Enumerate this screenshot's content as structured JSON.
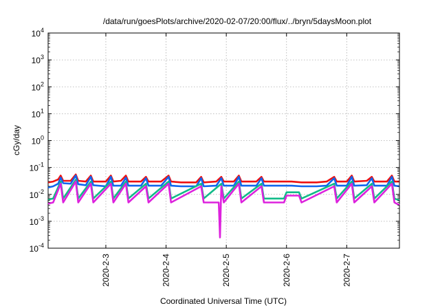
{
  "chart_data": {
    "type": "line",
    "title": "/data/run/goesPlots/archive/2020-02-07/20:00/flux/../bryn/5daysMoon.plot",
    "xlabel": "Coordinated Universal Time (UTC)",
    "ylabel": "cGy/day",
    "y_scale": "log",
    "ylim": [
      0.0001,
      10000
    ],
    "xlim": [
      "2020-02-02T01:00",
      "2020-02-07T21:00"
    ],
    "y_ticks": [
      {
        "base": "10",
        "exp": "-4",
        "value": 0.0001
      },
      {
        "base": "10",
        "exp": "-3",
        "value": 0.001
      },
      {
        "base": "10",
        "exp": "-2",
        "value": 0.01
      },
      {
        "base": "10",
        "exp": "-1",
        "value": 0.1
      },
      {
        "base": "10",
        "exp": "0",
        "value": 1
      },
      {
        "base": "10",
        "exp": "1",
        "value": 10
      },
      {
        "base": "10",
        "exp": "2",
        "value": 100
      },
      {
        "base": "10",
        "exp": "3",
        "value": 1000
      },
      {
        "base": "10",
        "exp": "4",
        "value": 10000
      }
    ],
    "x_ticks": [
      {
        "label": "2020-2-3",
        "value": "2020-02-03T00:00"
      },
      {
        "label": "2020-2-4",
        "value": "2020-02-04T00:00"
      },
      {
        "label": "2020-2-5",
        "value": "2020-02-05T00:00"
      },
      {
        "label": "2020-2-6",
        "value": "2020-02-06T00:00"
      },
      {
        "label": "2020-2-7",
        "value": "2020-02-07T00:00"
      }
    ],
    "grid": true,
    "series": [
      {
        "color": "#ee1111",
        "points": [
          [
            "2020-02-02T01:00",
            0.028
          ],
          [
            "2020-02-02T03:00",
            0.03
          ],
          [
            "2020-02-02T05:00",
            0.036
          ],
          [
            "2020-02-02T06:00",
            0.05
          ],
          [
            "2020-02-02T07:00",
            0.032
          ],
          [
            "2020-02-02T10:00",
            0.032
          ],
          [
            "2020-02-02T12:00",
            0.055
          ],
          [
            "2020-02-02T13:00",
            0.032
          ],
          [
            "2020-02-02T16:00",
            0.03
          ],
          [
            "2020-02-02T18:00",
            0.05
          ],
          [
            "2020-02-02T19:00",
            0.03
          ],
          [
            "2020-02-03T00:00",
            0.03
          ],
          [
            "2020-02-03T02:00",
            0.05
          ],
          [
            "2020-02-03T03:00",
            0.03
          ],
          [
            "2020-02-03T06:00",
            0.032
          ],
          [
            "2020-02-03T08:00",
            0.05
          ],
          [
            "2020-02-03T09:00",
            0.03
          ],
          [
            "2020-02-03T14:00",
            0.03
          ],
          [
            "2020-02-03T16:00",
            0.045
          ],
          [
            "2020-02-03T17:00",
            0.03
          ],
          [
            "2020-02-03T22:00",
            0.03
          ],
          [
            "2020-02-04T01:00",
            0.05
          ],
          [
            "2020-02-04T02:00",
            0.03
          ],
          [
            "2020-02-04T06:00",
            0.028
          ],
          [
            "2020-02-04T12:00",
            0.028
          ],
          [
            "2020-02-04T14:00",
            0.045
          ],
          [
            "2020-02-04T15:00",
            0.028
          ],
          [
            "2020-02-04T20:00",
            0.03
          ],
          [
            "2020-02-04T22:00",
            0.045
          ],
          [
            "2020-02-04T23:00",
            0.03
          ],
          [
            "2020-02-05T03:00",
            0.03
          ],
          [
            "2020-02-05T05:00",
            0.05
          ],
          [
            "2020-02-05T06:00",
            0.03
          ],
          [
            "2020-02-05T12:00",
            0.03
          ],
          [
            "2020-02-05T14:00",
            0.045
          ],
          [
            "2020-02-05T15:00",
            0.03
          ],
          [
            "2020-02-05T20:00",
            0.03
          ],
          [
            "2020-02-06T02:00",
            0.03
          ],
          [
            "2020-02-06T06:00",
            0.028
          ],
          [
            "2020-02-06T12:00",
            0.028
          ],
          [
            "2020-02-06T16:00",
            0.03
          ],
          [
            "2020-02-06T19:00",
            0.045
          ],
          [
            "2020-02-06T20:00",
            0.03
          ],
          [
            "2020-02-07T00:00",
            0.03
          ],
          [
            "2020-02-07T02:00",
            0.05
          ],
          [
            "2020-02-07T03:00",
            0.03
          ],
          [
            "2020-02-07T08:00",
            0.032
          ],
          [
            "2020-02-07T10:00",
            0.045
          ],
          [
            "2020-02-07T11:00",
            0.03
          ],
          [
            "2020-02-07T16:00",
            0.03
          ],
          [
            "2020-02-07T18:00",
            0.05
          ],
          [
            "2020-02-07T19:00",
            0.03
          ],
          [
            "2020-02-07T21:00",
            0.03
          ]
        ]
      },
      {
        "color": "#1166ee",
        "points": [
          [
            "2020-02-02T01:00",
            0.018
          ],
          [
            "2020-02-02T03:00",
            0.02
          ],
          [
            "2020-02-02T05:00",
            0.025
          ],
          [
            "2020-02-02T06:00",
            0.042
          ],
          [
            "2020-02-02T07:00",
            0.026
          ],
          [
            "2020-02-02T10:00",
            0.025
          ],
          [
            "2020-02-02T12:00",
            0.05
          ],
          [
            "2020-02-02T13:00",
            0.024
          ],
          [
            "2020-02-02T16:00",
            0.022
          ],
          [
            "2020-02-02T18:00",
            0.045
          ],
          [
            "2020-02-02T19:00",
            0.022
          ],
          [
            "2020-02-03T00:00",
            0.02
          ],
          [
            "2020-02-03T02:00",
            0.045
          ],
          [
            "2020-02-03T03:00",
            0.021
          ],
          [
            "2020-02-03T06:00",
            0.021
          ],
          [
            "2020-02-03T08:00",
            0.042
          ],
          [
            "2020-02-03T09:00",
            0.021
          ],
          [
            "2020-02-03T14:00",
            0.021
          ],
          [
            "2020-02-03T16:00",
            0.04
          ],
          [
            "2020-02-03T17:00",
            0.021
          ],
          [
            "2020-02-03T22:00",
            0.021
          ],
          [
            "2020-02-04T01:00",
            0.045
          ],
          [
            "2020-02-04T02:00",
            0.021
          ],
          [
            "2020-02-04T06:00",
            0.02
          ],
          [
            "2020-02-04T12:00",
            0.02
          ],
          [
            "2020-02-04T14:00",
            0.04
          ],
          [
            "2020-02-04T15:00",
            0.02
          ],
          [
            "2020-02-04T20:00",
            0.021
          ],
          [
            "2020-02-04T22:00",
            0.04
          ],
          [
            "2020-02-04T23:00",
            0.021
          ],
          [
            "2020-02-05T03:00",
            0.021
          ],
          [
            "2020-02-05T05:00",
            0.045
          ],
          [
            "2020-02-05T06:00",
            0.021
          ],
          [
            "2020-02-05T12:00",
            0.021
          ],
          [
            "2020-02-05T14:00",
            0.04
          ],
          [
            "2020-02-05T15:00",
            0.021
          ],
          [
            "2020-02-05T20:00",
            0.021
          ],
          [
            "2020-02-06T02:00",
            0.021
          ],
          [
            "2020-02-06T06:00",
            0.02
          ],
          [
            "2020-02-06T12:00",
            0.02
          ],
          [
            "2020-02-06T16:00",
            0.021
          ],
          [
            "2020-02-06T19:00",
            0.04
          ],
          [
            "2020-02-06T20:00",
            0.021
          ],
          [
            "2020-02-07T00:00",
            0.021
          ],
          [
            "2020-02-07T02:00",
            0.045
          ],
          [
            "2020-02-07T03:00",
            0.021
          ],
          [
            "2020-02-07T08:00",
            0.022
          ],
          [
            "2020-02-07T10:00",
            0.04
          ],
          [
            "2020-02-07T11:00",
            0.021
          ],
          [
            "2020-02-07T16:00",
            0.021
          ],
          [
            "2020-02-07T18:00",
            0.045
          ],
          [
            "2020-02-07T19:00",
            0.021
          ],
          [
            "2020-02-07T21:00",
            0.02
          ]
        ]
      },
      {
        "color": "#11bb88",
        "points": [
          [
            "2020-02-02T01:00",
            0.0065
          ],
          [
            "2020-02-02T03:00",
            0.007
          ],
          [
            "2020-02-02T06:00",
            0.03
          ],
          [
            "2020-02-02T07:00",
            0.007
          ],
          [
            "2020-02-02T12:00",
            0.035
          ],
          [
            "2020-02-02T13:00",
            0.007
          ],
          [
            "2020-02-02T18:00",
            0.03
          ],
          [
            "2020-02-02T19:00",
            0.007
          ],
          [
            "2020-02-03T02:00",
            0.03
          ],
          [
            "2020-02-03T03:00",
            0.007
          ],
          [
            "2020-02-03T08:00",
            0.03
          ],
          [
            "2020-02-03T09:00",
            0.007
          ],
          [
            "2020-02-03T16:00",
            0.025
          ],
          [
            "2020-02-03T17:00",
            0.007
          ],
          [
            "2020-02-04T01:00",
            0.03
          ],
          [
            "2020-02-04T02:00",
            0.007
          ],
          [
            "2020-02-04T14:00",
            0.025
          ],
          [
            "2020-02-04T15:00",
            0.007
          ],
          [
            "2020-02-04T22:00",
            0.025
          ],
          [
            "2020-02-04T23:00",
            0.007
          ],
          [
            "2020-02-05T05:00",
            0.03
          ],
          [
            "2020-02-05T06:00",
            0.007
          ],
          [
            "2020-02-05T14:00",
            0.025
          ],
          [
            "2020-02-05T15:00",
            0.007
          ],
          [
            "2020-02-05T23:00",
            0.007
          ],
          [
            "2020-02-06T00:00",
            0.012
          ],
          [
            "2020-02-06T05:00",
            0.012
          ],
          [
            "2020-02-06T06:00",
            0.007
          ],
          [
            "2020-02-06T19:00",
            0.025
          ],
          [
            "2020-02-06T20:00",
            0.007
          ],
          [
            "2020-02-07T02:00",
            0.03
          ],
          [
            "2020-02-07T03:00",
            0.007
          ],
          [
            "2020-02-07T10:00",
            0.025
          ],
          [
            "2020-02-07T11:00",
            0.007
          ],
          [
            "2020-02-07T18:00",
            0.03
          ],
          [
            "2020-02-07T19:00",
            0.007
          ],
          [
            "2020-02-07T21:00",
            0.006
          ]
        ]
      },
      {
        "color": "#dd22dd",
        "points": [
          [
            "2020-02-02T01:00",
            0.0045
          ],
          [
            "2020-02-02T03:00",
            0.005
          ],
          [
            "2020-02-02T06:00",
            0.025
          ],
          [
            "2020-02-02T07:00",
            0.005
          ],
          [
            "2020-02-02T12:00",
            0.03
          ],
          [
            "2020-02-02T13:00",
            0.005
          ],
          [
            "2020-02-02T18:00",
            0.025
          ],
          [
            "2020-02-02T19:00",
            0.005
          ],
          [
            "2020-02-03T02:00",
            0.025
          ],
          [
            "2020-02-03T03:00",
            0.005
          ],
          [
            "2020-02-03T08:00",
            0.025
          ],
          [
            "2020-02-03T09:00",
            0.005
          ],
          [
            "2020-02-03T16:00",
            0.02
          ],
          [
            "2020-02-03T17:00",
            0.005
          ],
          [
            "2020-02-04T01:00",
            0.025
          ],
          [
            "2020-02-04T02:00",
            0.005
          ],
          [
            "2020-02-04T14:00",
            0.02
          ],
          [
            "2020-02-04T15:00",
            0.005
          ],
          [
            "2020-02-04T21:00",
            0.005
          ],
          [
            "2020-02-04T21:30",
            0.00025
          ],
          [
            "2020-02-04T22:00",
            0.02
          ],
          [
            "2020-02-04T23:00",
            0.005
          ],
          [
            "2020-02-05T05:00",
            0.025
          ],
          [
            "2020-02-05T06:00",
            0.005
          ],
          [
            "2020-02-05T14:00",
            0.02
          ],
          [
            "2020-02-05T15:00",
            0.005
          ],
          [
            "2020-02-05T23:00",
            0.005
          ],
          [
            "2020-02-06T00:00",
            0.009
          ],
          [
            "2020-02-06T05:00",
            0.009
          ],
          [
            "2020-02-06T06:00",
            0.005
          ],
          [
            "2020-02-06T19:00",
            0.02
          ],
          [
            "2020-02-06T20:00",
            0.005
          ],
          [
            "2020-02-07T02:00",
            0.025
          ],
          [
            "2020-02-07T03:00",
            0.005
          ],
          [
            "2020-02-07T10:00",
            0.02
          ],
          [
            "2020-02-07T11:00",
            0.005
          ],
          [
            "2020-02-07T18:00",
            0.025
          ],
          [
            "2020-02-07T19:00",
            0.005
          ],
          [
            "2020-02-07T21:00",
            0.004
          ]
        ]
      }
    ]
  }
}
